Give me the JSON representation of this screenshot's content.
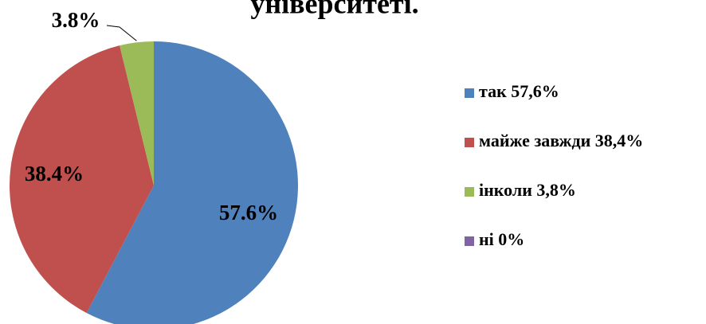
{
  "chart_data": {
    "type": "pie",
    "title": "університеті.",
    "series": [
      {
        "name": "так 57,6%",
        "color": "#4f81bd",
        "values": [
          57.6
        ],
        "value_labels": [
          "57.6%"
        ]
      },
      {
        "name": "майже завжди 38,4%",
        "color": "#c0504d",
        "values": [
          38.4
        ],
        "value_labels": [
          "38.4%"
        ]
      },
      {
        "name": "інколи 3,8%",
        "color": "#9bbb59",
        "values": [
          3.8
        ],
        "value_labels": [
          "3.8%"
        ]
      },
      {
        "name": "ні 0%",
        "color": "#8064a2",
        "values": [
          0
        ]
      }
    ],
    "legend": "right"
  }
}
